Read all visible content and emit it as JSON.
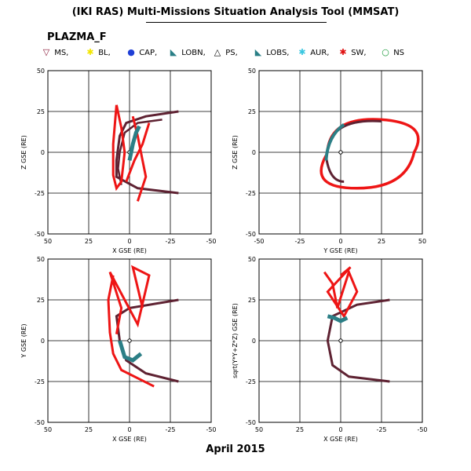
{
  "header": {
    "title": "(IKI RAS) Multi-Missions Situation Analysis Tool (MMSAT)",
    "subtitle": "PLAZMA_F"
  },
  "legend": {
    "items": [
      {
        "symbol": "▽",
        "label": "MS,",
        "color": "#8b1a3a"
      },
      {
        "symbol": "✱",
        "label": "BL,",
        "color": "#f2e600"
      },
      {
        "symbol": "●",
        "label": "CAP,",
        "color": "#1f3fd6"
      },
      {
        "symbol": "◣",
        "label": "LOBN,",
        "color": "#2a7f86"
      },
      {
        "symbol": "△",
        "label": "PS,",
        "color": "#000000"
      },
      {
        "symbol": "◣",
        "label": "LOBS,",
        "color": "#2a7f86"
      },
      {
        "symbol": "✱",
        "label": "AUR,",
        "color": "#38c6e0"
      },
      {
        "symbol": "✱",
        "label": "SW,",
        "color": "#e01010"
      },
      {
        "symbol": "○",
        "label": "NS",
        "color": "#1a9a3a"
      }
    ]
  },
  "footer": {
    "date_label": "April 2015"
  },
  "chart_data": [
    {
      "type": "line",
      "xlabel": "X GSE (RE)",
      "ylabel": "Z GSE (RE)",
      "xlim": [
        50,
        -50
      ],
      "ylim": [
        -50,
        50
      ],
      "xticks": [
        "50",
        "25",
        "0",
        "-25",
        "-50"
      ],
      "yticks": [
        "-50",
        "-25",
        "0",
        "25",
        "50"
      ],
      "grid": true
    },
    {
      "type": "line",
      "xlabel": "Y GSE (RE)",
      "ylabel": "Z GSE (RE)",
      "xlim": [
        -50,
        50
      ],
      "ylim": [
        -50,
        50
      ],
      "xticks": [
        "-50",
        "-25",
        "0",
        "25",
        "50"
      ],
      "yticks": [
        "-50",
        "-25",
        "0",
        "25",
        "50"
      ],
      "grid": true
    },
    {
      "type": "line",
      "xlabel": "X GSE (RE)",
      "ylabel": "Y GSE (RE)",
      "xlim": [
        50,
        -50
      ],
      "ylim": [
        -50,
        50
      ],
      "xticks": [
        "50",
        "25",
        "0",
        "-25",
        "-50"
      ],
      "yticks": [
        "-50",
        "-25",
        "0",
        "25",
        "50"
      ],
      "grid": true
    },
    {
      "type": "line",
      "xlabel": "X GSE (RE)",
      "ylabel": "sqrt(Y*Y+Z*Z) GSE (RE)",
      "xlim": [
        50,
        -50
      ],
      "ylim": [
        -50,
        50
      ],
      "xticks": [
        "50",
        "25",
        "0",
        "-25",
        "-50"
      ],
      "yticks": [
        "-50",
        "-25",
        "0",
        "25",
        "50"
      ],
      "grid": true
    }
  ]
}
